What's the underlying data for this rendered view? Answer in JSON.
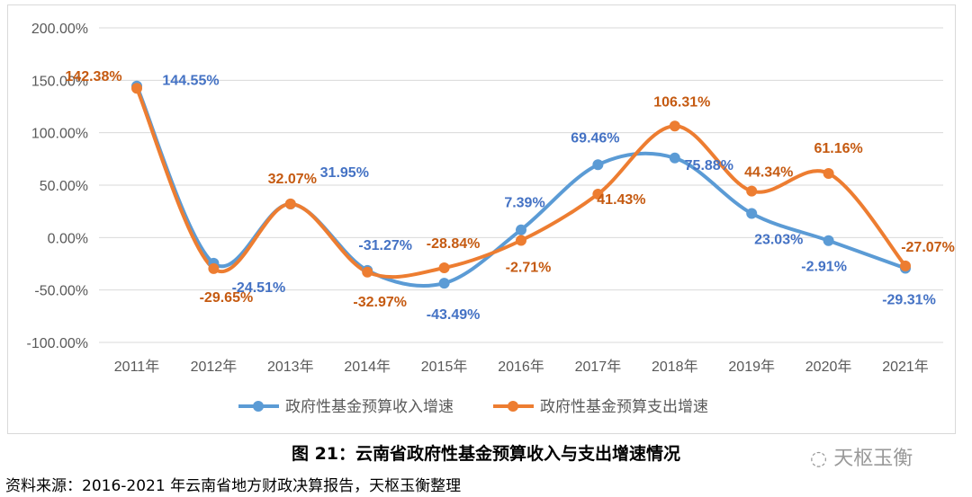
{
  "chart_data": {
    "type": "line",
    "title": "图 21：云南省政府性基金预算收入与支出增速情况",
    "categories": [
      "2011年",
      "2012年",
      "2013年",
      "2014年",
      "2015年",
      "2016年",
      "2017年",
      "2018年",
      "2019年",
      "2020年",
      "2021年"
    ],
    "series": [
      {
        "name": "政府性基金预算收入增速",
        "color": "#5b9bd5",
        "label_color": "#4472c4",
        "values": [
          144.55,
          -24.51,
          31.95,
          -31.27,
          -43.49,
          7.39,
          69.46,
          75.88,
          23.03,
          -2.91,
          -29.31
        ]
      },
      {
        "name": "政府性基金预算支出增速",
        "color": "#ed7d31",
        "label_color": "#c55a11",
        "values": [
          142.38,
          -29.65,
          32.07,
          -32.97,
          -28.84,
          -2.71,
          41.43,
          106.31,
          44.34,
          61.16,
          -27.07
        ]
      }
    ],
    "ylim": [
      -100,
      200
    ],
    "yticks": [
      200,
      150,
      100,
      50,
      0,
      -50,
      -100
    ],
    "ytick_labels": [
      "200.00%",
      "150.00%",
      "100.00%",
      "50.00%",
      "0.00%",
      "-50.00%",
      "-100.00%"
    ],
    "grid": true,
    "legend": "bottom",
    "xlabel": "",
    "ylabel": ""
  },
  "source": "资料来源：2016-2021 年云南省地方财政决算报告，天枢玉衡整理",
  "watermark": "天枢玉衡"
}
